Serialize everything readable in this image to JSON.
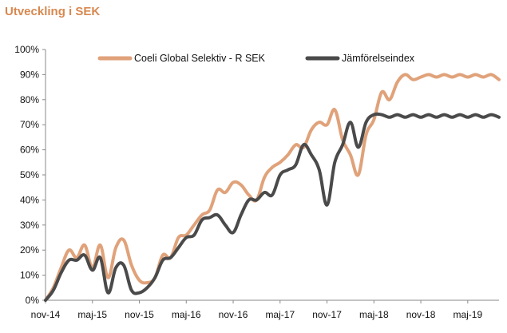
{
  "title": "Utveckling i SEK",
  "colors": {
    "title": "#d8884f",
    "series1": "#e0a27a",
    "series2": "#4a4a4a",
    "axis": "#8a8a8a"
  },
  "chart_data": {
    "type": "line",
    "title": "Utveckling i SEK",
    "xlabel": "",
    "ylabel": "",
    "ylim": [
      0,
      100
    ],
    "yticks": [
      0,
      10,
      20,
      30,
      40,
      50,
      60,
      70,
      80,
      90,
      100
    ],
    "ytick_labels": [
      "0%",
      "10%",
      "20%",
      "30%",
      "40%",
      "50%",
      "60%",
      "70%",
      "80%",
      "90%",
      "100%"
    ],
    "xticks": [
      0,
      6,
      12,
      18,
      24,
      30,
      36,
      42,
      48,
      54
    ],
    "xtick_labels": [
      "nov-14",
      "maj-15",
      "nov-15",
      "maj-16",
      "nov-16",
      "maj-17",
      "nov-17",
      "maj-18",
      "nov-18",
      "maj-19"
    ],
    "xlim": [
      0,
      58
    ],
    "legend": "top",
    "grid": false,
    "series": [
      {
        "name": "Coeli Global Selektiv - R SEK",
        "x": [
          0,
          1,
          2,
          3,
          4,
          5,
          6,
          7,
          8,
          9,
          10,
          11,
          12,
          13,
          14,
          15,
          16,
          17,
          18,
          19,
          20,
          21,
          22,
          23,
          24,
          25,
          26,
          27,
          28,
          29,
          30,
          31,
          32,
          33,
          34,
          35,
          36,
          37,
          38,
          39,
          40,
          41,
          42,
          43,
          44,
          45,
          46,
          47,
          48,
          49,
          50,
          51,
          52,
          53,
          54,
          55,
          56,
          57,
          58
        ],
        "values": [
          0,
          5,
          13,
          20,
          17,
          22,
          13,
          22,
          9,
          21,
          24,
          14,
          8,
          7,
          9,
          18,
          17,
          25,
          26,
          30,
          34,
          36,
          44,
          43,
          47,
          46,
          42,
          40,
          49,
          53,
          55,
          58,
          62,
          61,
          68,
          71,
          70,
          76,
          64,
          58,
          50,
          66,
          72,
          83,
          80,
          87,
          90,
          88,
          89,
          90,
          89,
          90,
          89,
          90,
          89,
          90,
          89,
          90,
          88
        ]
      },
      {
        "name": "Jämförelseindex",
        "x": [
          0,
          1,
          2,
          3,
          4,
          5,
          6,
          7,
          8,
          9,
          10,
          11,
          12,
          13,
          14,
          15,
          16,
          17,
          18,
          19,
          20,
          21,
          22,
          23,
          24,
          25,
          26,
          27,
          28,
          29,
          30,
          31,
          32,
          33,
          34,
          35,
          36,
          37,
          38,
          39,
          40,
          41,
          42,
          43,
          44,
          45,
          46,
          47,
          48,
          49,
          50,
          51,
          52,
          53,
          54,
          55,
          56,
          57,
          58
        ],
        "values": [
          0,
          4,
          11,
          16,
          16,
          18,
          12,
          17,
          3,
          13,
          14,
          4,
          3,
          5,
          9,
          16,
          17,
          21,
          25,
          26,
          32,
          33,
          34,
          30,
          27,
          34,
          40,
          40,
          43,
          42,
          50,
          52,
          54,
          62,
          58,
          52,
          38,
          55,
          62,
          71,
          61,
          71,
          74,
          74,
          73,
          74,
          73,
          74,
          73,
          74,
          73,
          74,
          73,
          74,
          73,
          74,
          73,
          74,
          73
        ]
      }
    ]
  }
}
